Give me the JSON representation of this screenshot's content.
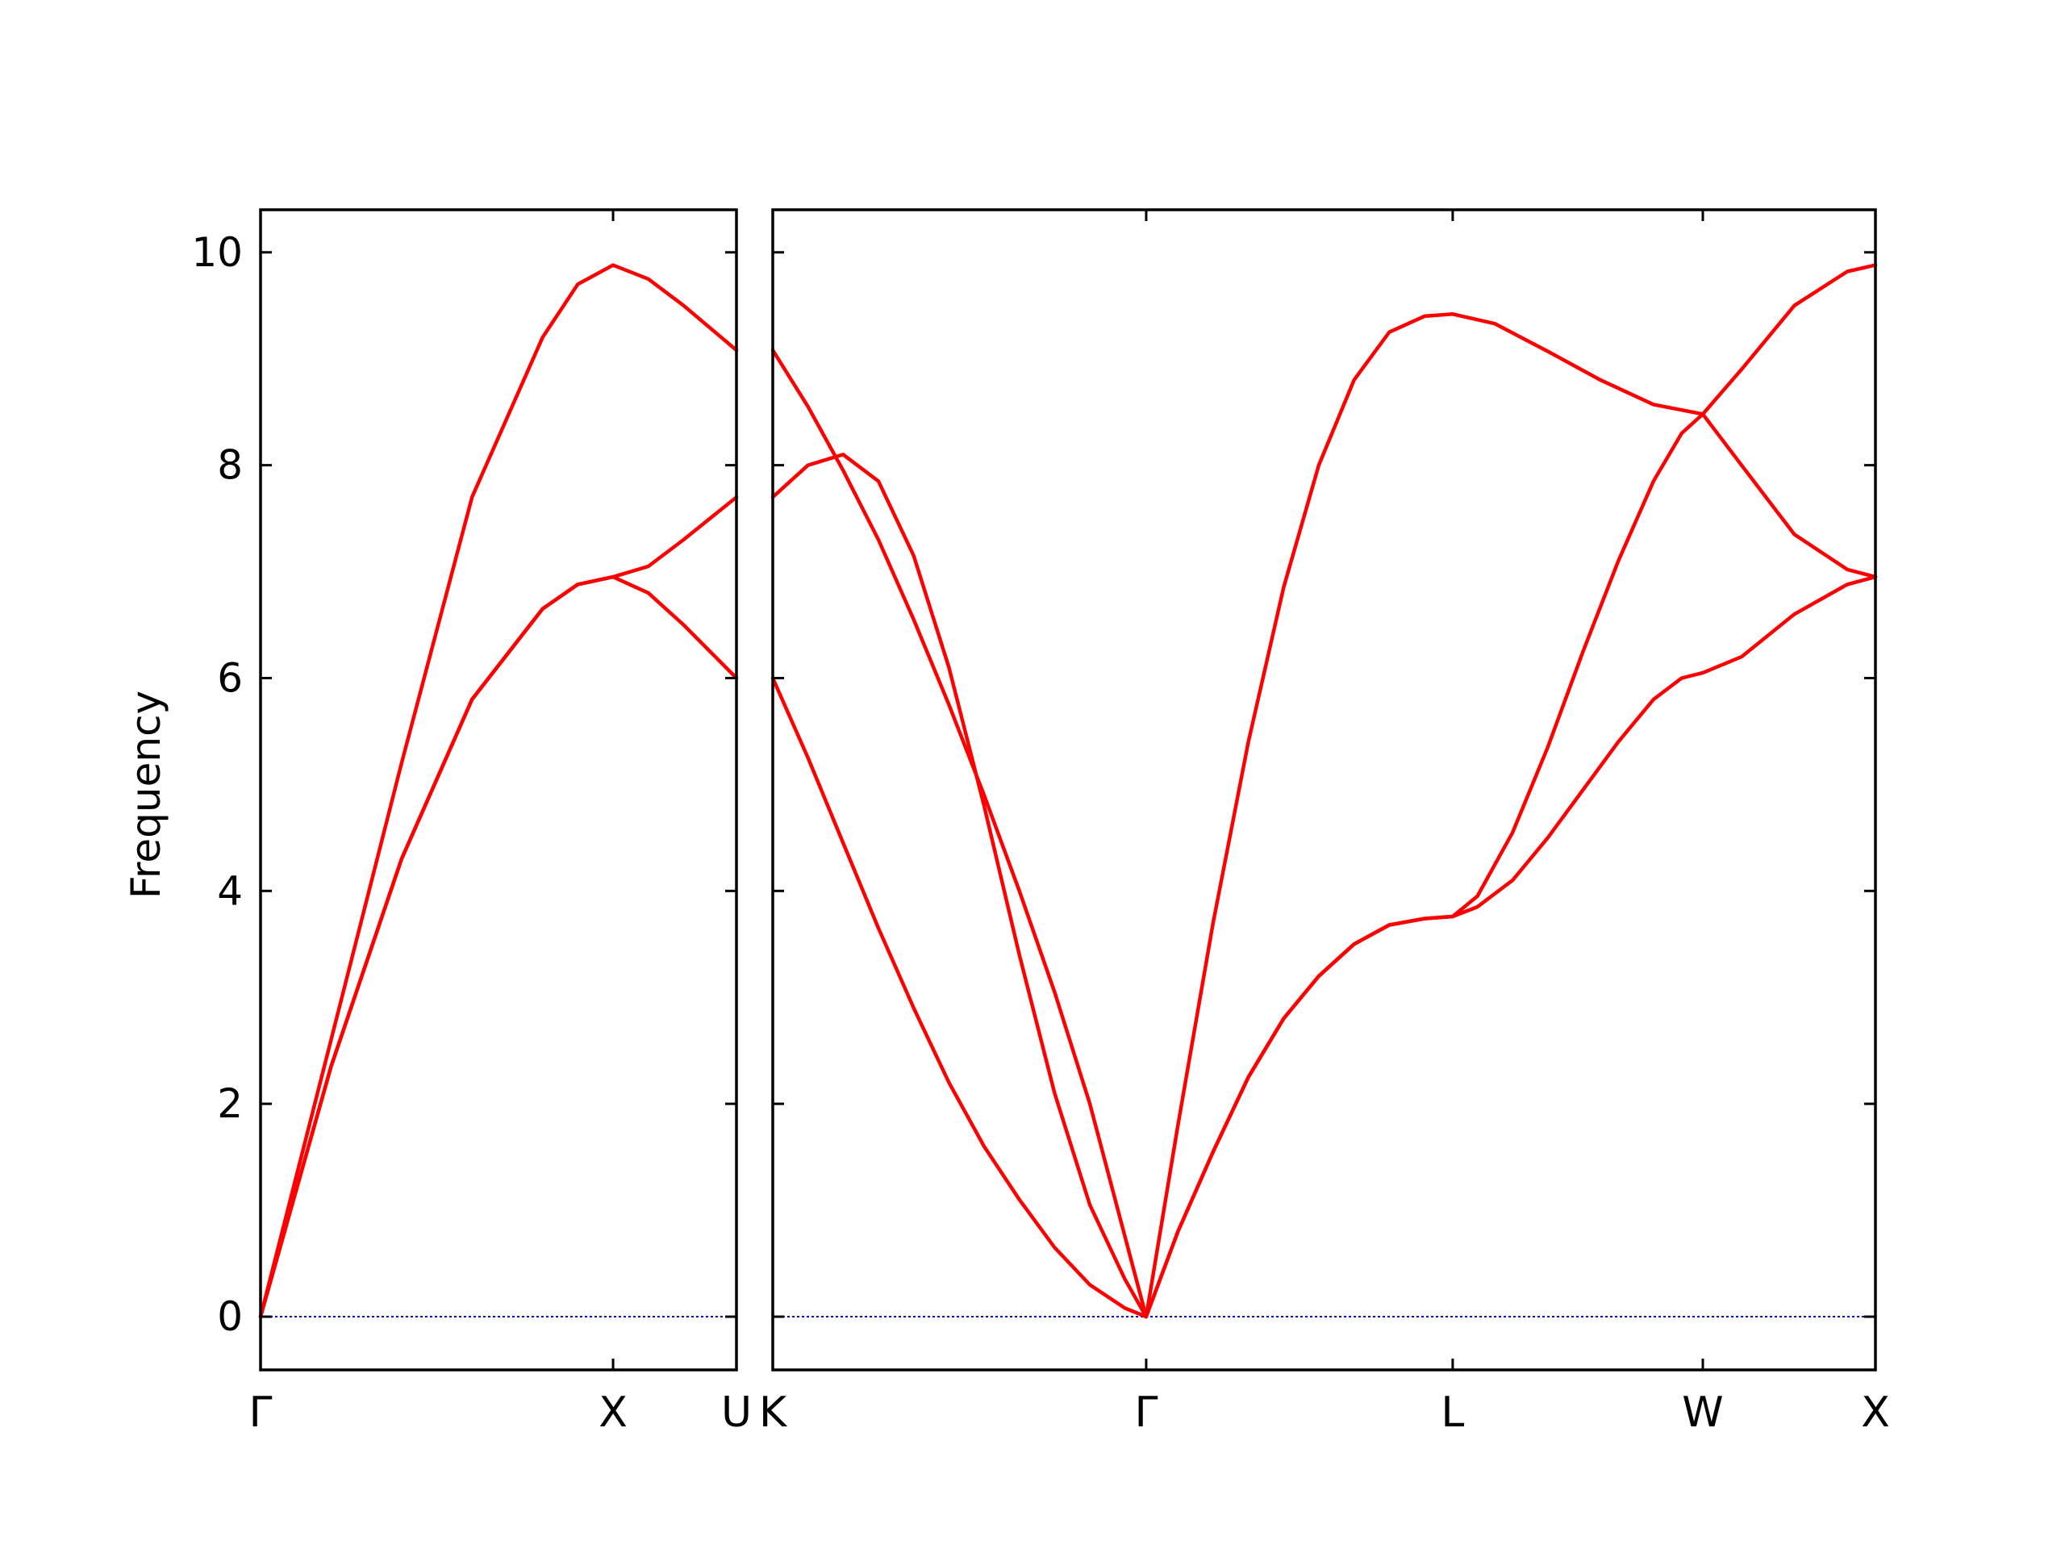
{
  "chart_data": {
    "type": "line",
    "ylabel": "Frequency",
    "ylim": [
      -0.5,
      10.4
    ],
    "yticks": [
      0,
      2,
      4,
      6,
      8,
      10
    ],
    "line_color": "#ff0000",
    "zero_line_color": "#0000cc",
    "panels": [
      {
        "name": "Γ-X-U",
        "xlim": [
          0,
          1.35
        ],
        "xticks": [
          {
            "label": "Γ",
            "x": 0
          },
          {
            "label": "X",
            "x": 1.0
          },
          {
            "label": "U",
            "x": 1.35
          }
        ],
        "series": [
          {
            "x": [
              0,
              0.2,
              0.4,
              0.6,
              0.8,
              0.9,
              1.0,
              1.1,
              1.2,
              1.35
            ],
            "y": [
              0,
              2.6,
              5.2,
              7.7,
              9.2,
              9.7,
              9.88,
              9.75,
              9.5,
              9.08
            ]
          },
          {
            "x": [
              0,
              0.2,
              0.4,
              0.6,
              0.8,
              0.9,
              1.0,
              1.1,
              1.2,
              1.35
            ],
            "y": [
              0,
              2.35,
              4.3,
              5.8,
              6.65,
              6.88,
              6.95,
              7.05,
              7.3,
              7.7
            ]
          },
          {
            "x": [
              0,
              0.2,
              0.4,
              0.6,
              0.8,
              0.9,
              1.0,
              1.1,
              1.2,
              1.35
            ],
            "y": [
              0,
              2.35,
              4.3,
              5.8,
              6.65,
              6.88,
              6.95,
              6.8,
              6.5,
              6.0
            ]
          }
        ]
      },
      {
        "name": "K-Γ-L-W-X",
        "xlim": [
          0,
          3.13
        ],
        "xticks": [
          {
            "label": "K",
            "x": 0
          },
          {
            "label": "Γ",
            "x": 1.06
          },
          {
            "label": "L",
            "x": 1.93
          },
          {
            "label": "W",
            "x": 2.64
          },
          {
            "label": "X",
            "x": 3.13
          }
        ],
        "series": [
          {
            "x": [
              0,
              0.1,
              0.2,
              0.3,
              0.4,
              0.5,
              0.6,
              0.7,
              0.8,
              0.9,
              1.0,
              1.06
            ],
            "y": [
              9.08,
              8.55,
              7.95,
              7.3,
              6.55,
              5.75,
              4.9,
              4.0,
              3.05,
              2.0,
              0.75,
              0
            ]
          },
          {
            "x": [
              0,
              0.1,
              0.2,
              0.3,
              0.4,
              0.5,
              0.6,
              0.7,
              0.8,
              0.9,
              1.0,
              1.06
            ],
            "y": [
              7.7,
              8.0,
              8.1,
              7.85,
              7.15,
              6.1,
              4.8,
              3.4,
              2.1,
              1.05,
              0.35,
              0
            ]
          },
          {
            "x": [
              0,
              0.1,
              0.2,
              0.3,
              0.4,
              0.5,
              0.6,
              0.7,
              0.8,
              0.9,
              1.0,
              1.06
            ],
            "y": [
              6.0,
              5.25,
              4.45,
              3.65,
              2.9,
              2.2,
              1.6,
              1.1,
              0.65,
              0.3,
              0.08,
              0
            ]
          },
          {
            "x": [
              1.06,
              1.15,
              1.25,
              1.35,
              1.45,
              1.55,
              1.65,
              1.75,
              1.85,
              1.93,
              2.05,
              2.2,
              2.35,
              2.5,
              2.64,
              2.75,
              2.9,
              3.05,
              3.13
            ],
            "y": [
              0,
              1.8,
              3.7,
              5.4,
              6.85,
              8.0,
              8.8,
              9.25,
              9.4,
              9.42,
              9.33,
              9.07,
              8.8,
              8.57,
              8.48,
              8.9,
              9.5,
              9.82,
              9.88
            ]
          },
          {
            "x": [
              1.06,
              1.15,
              1.25,
              1.35,
              1.45,
              1.55,
              1.65,
              1.75,
              1.85,
              1.93,
              2.0,
              2.1,
              2.2,
              2.3,
              2.4,
              2.5,
              2.58,
              2.64,
              2.75,
              2.9,
              3.05,
              3.13
            ],
            "y": [
              0,
              0.8,
              1.55,
              2.25,
              2.8,
              3.2,
              3.5,
              3.68,
              3.74,
              3.76,
              3.95,
              4.55,
              5.35,
              6.25,
              7.1,
              7.85,
              8.3,
              8.48,
              8.0,
              7.35,
              7.02,
              6.95
            ]
          },
          {
            "x": [
              1.06,
              1.15,
              1.25,
              1.35,
              1.45,
              1.55,
              1.65,
              1.75,
              1.85,
              1.93,
              2.0,
              2.1,
              2.2,
              2.3,
              2.4,
              2.5,
              2.58,
              2.64,
              2.75,
              2.9,
              3.05,
              3.13
            ],
            "y": [
              0,
              0.8,
              1.55,
              2.25,
              2.8,
              3.2,
              3.5,
              3.68,
              3.74,
              3.76,
              3.85,
              4.1,
              4.5,
              4.95,
              5.4,
              5.8,
              6.0,
              6.05,
              6.2,
              6.6,
              6.88,
              6.95
            ]
          }
        ]
      }
    ]
  }
}
